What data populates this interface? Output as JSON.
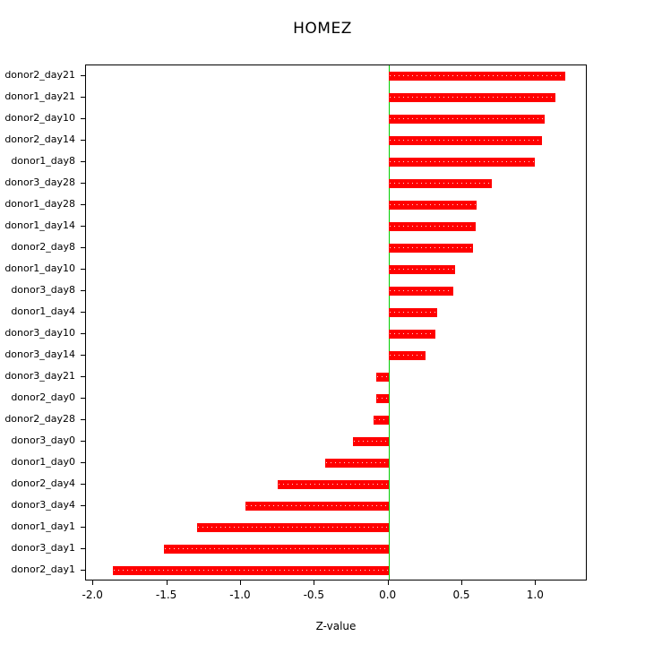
{
  "chart_data": {
    "type": "bar",
    "orientation": "horizontal",
    "title": "HOMEZ",
    "xlabel": "Z-value",
    "ylabel": "",
    "categories": [
      "donor2_day21",
      "donor1_day21",
      "donor2_day10",
      "donor2_day14",
      "donor1_day8",
      "donor3_day28",
      "donor1_day28",
      "donor1_day14",
      "donor2_day8",
      "donor1_day10",
      "donor3_day8",
      "donor1_day4",
      "donor3_day10",
      "donor3_day14",
      "donor3_day21",
      "donor2_day0",
      "donor2_day28",
      "donor3_day0",
      "donor1_day0",
      "donor2_day4",
      "donor3_day4",
      "donor1_day1",
      "donor3_day1",
      "donor2_day1"
    ],
    "values": [
      1.2,
      1.13,
      1.06,
      1.04,
      0.99,
      0.7,
      0.6,
      0.59,
      0.57,
      0.45,
      0.44,
      0.33,
      0.32,
      0.25,
      -0.08,
      -0.08,
      -0.1,
      -0.24,
      -0.43,
      -0.75,
      -0.97,
      -1.3,
      -1.52,
      -1.87
    ],
    "xlim": [
      -2.05,
      1.35
    ],
    "xticks": {
      "values": [
        -2.0,
        -1.5,
        -1.0,
        -0.5,
        0.0,
        0.5,
        1.0
      ],
      "labels": [
        "-2.0",
        "-1.5",
        "-1.0",
        "-0.5",
        "0.0",
        "0.5",
        "1.0"
      ]
    },
    "grid": false,
    "legend": "none",
    "bar_color": "#ff0000",
    "zero_line_color": "#00cc00"
  }
}
